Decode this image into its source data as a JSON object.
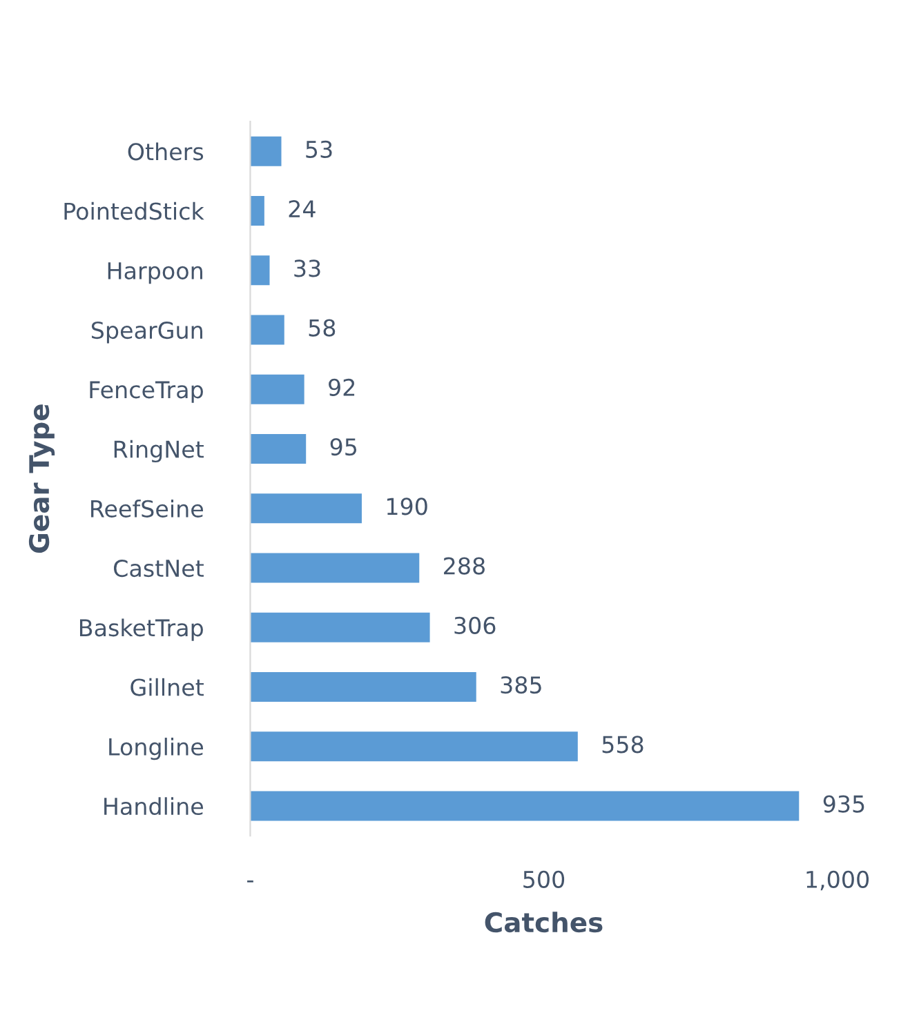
{
  "chart_data": {
    "type": "bar",
    "orientation": "horizontal",
    "xlabel": "Catches",
    "ylabel": "Gear Type",
    "categories": [
      "Others",
      "PointedStick",
      "Harpoon",
      "SpearGun",
      "FenceTrap",
      "RingNet",
      "ReefSeine",
      "CastNet",
      "BasketTrap",
      "Gillnet",
      "Longline",
      "Handline"
    ],
    "values": [
      53,
      24,
      33,
      58,
      92,
      95,
      190,
      288,
      306,
      385,
      558,
      935
    ],
    "color": "#5b9bd5",
    "xlim": [
      0,
      1000
    ],
    "xticks": [
      {
        "value": 0,
        "label": "-"
      },
      500,
      {
        "value": 1000,
        "label": "1,000"
      }
    ],
    "data_labels": true,
    "grid": false
  }
}
